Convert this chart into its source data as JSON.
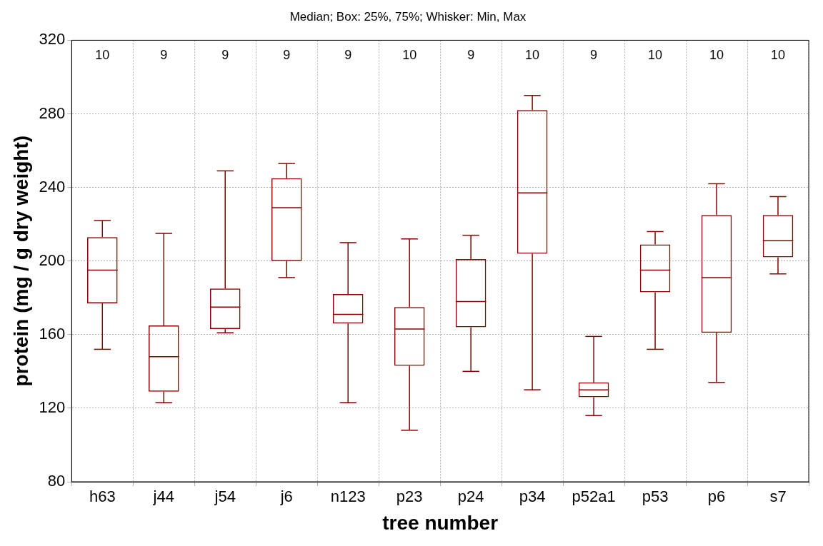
{
  "chart_data": {
    "type": "box",
    "title": "Median; Box: 25%, 75%; Whisker: Min, Max",
    "xlabel": "tree number",
    "ylabel": "protein (mg / g dry weight)",
    "categories": [
      "h63",
      "j44",
      "j54",
      "j6",
      "n123",
      "p23",
      "p24",
      "p34",
      "p52a1",
      "p53",
      "p6",
      "s7"
    ],
    "color": "#8b0000",
    "boxes": [
      {
        "low": 152,
        "q1": 177,
        "median": 195,
        "q3": 213,
        "high": 222
      },
      {
        "low": 123,
        "q1": 129,
        "median": 148,
        "q3": 165,
        "high": 215
      },
      {
        "low": 161,
        "q1": 163,
        "median": 175,
        "q3": 185,
        "high": 249
      },
      {
        "low": 191,
        "q1": 200,
        "median": 229,
        "q3": 245,
        "high": 253
      },
      {
        "low": 123,
        "q1": 166,
        "median": 171,
        "q3": 182,
        "high": 210
      },
      {
        "low": 108,
        "q1": 143,
        "median": 163,
        "q3": 175,
        "high": 212
      },
      {
        "low": 140,
        "q1": 164,
        "median": 178,
        "q3": 201,
        "high": 214
      },
      {
        "low": 130,
        "q1": 204,
        "median": 237,
        "q3": 282,
        "high": 290
      },
      {
        "low": 116,
        "q1": 126,
        "median": 130,
        "q3": 134,
        "high": 159
      },
      {
        "low": 152,
        "q1": 183,
        "median": 195,
        "q3": 209,
        "high": 216
      },
      {
        "low": 134,
        "q1": 161,
        "median": 191,
        "q3": 225,
        "high": 242
      },
      {
        "low": 193,
        "q1": 202,
        "median": 211,
        "q3": 225,
        "high": 235
      }
    ],
    "ylim": [
      80,
      320
    ],
    "yticks": [
      80,
      120,
      160,
      200,
      240,
      280,
      320
    ],
    "grid": true,
    "annotations": [
      "10",
      "9",
      "9",
      "9",
      "9",
      "10",
      "9",
      "10",
      "9",
      "10",
      "10",
      "10"
    ]
  }
}
